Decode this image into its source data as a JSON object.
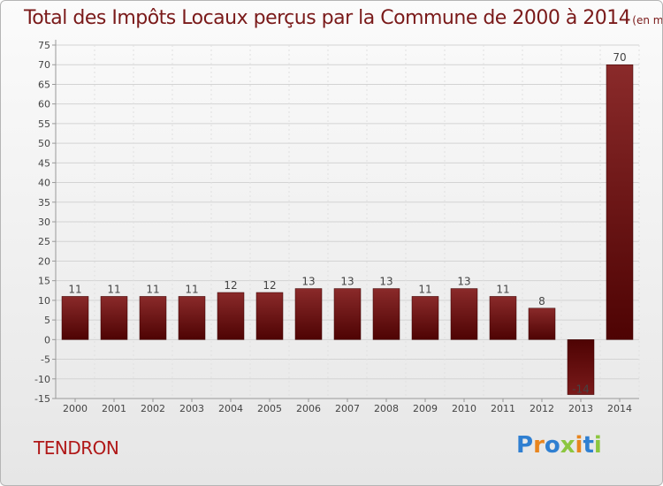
{
  "title": "Total des Impôts Locaux perçus par la Commune de 2000 à 2014",
  "title_unit": "(en milliers d'€)",
  "commune": "TENDRON",
  "logo": {
    "text": "Proxiti",
    "letters": [
      "P",
      "r",
      "o",
      "x",
      "i",
      "t",
      "i"
    ],
    "colors": [
      "#2f7fd1",
      "#e8851e",
      "#2f7fd1",
      "#8cc63f",
      "#e8851e",
      "#2f7fd1",
      "#8cc63f"
    ]
  },
  "chart_data": {
    "type": "bar",
    "categories": [
      "2000",
      "2001",
      "2002",
      "2003",
      "2004",
      "2005",
      "2006",
      "2007",
      "2008",
      "2009",
      "2010",
      "2011",
      "2012",
      "2013",
      "2014"
    ],
    "values": [
      11,
      11,
      11,
      11,
      12,
      12,
      13,
      13,
      13,
      11,
      13,
      11,
      8,
      -14,
      70
    ],
    "ylim": [
      -15,
      75
    ],
    "yticks": [
      -15,
      -10,
      -5,
      0,
      5,
      10,
      15,
      20,
      25,
      30,
      35,
      40,
      45,
      50,
      55,
      60,
      65,
      70,
      75
    ],
    "grid": true,
    "bar_color": "#6b0a0a"
  }
}
